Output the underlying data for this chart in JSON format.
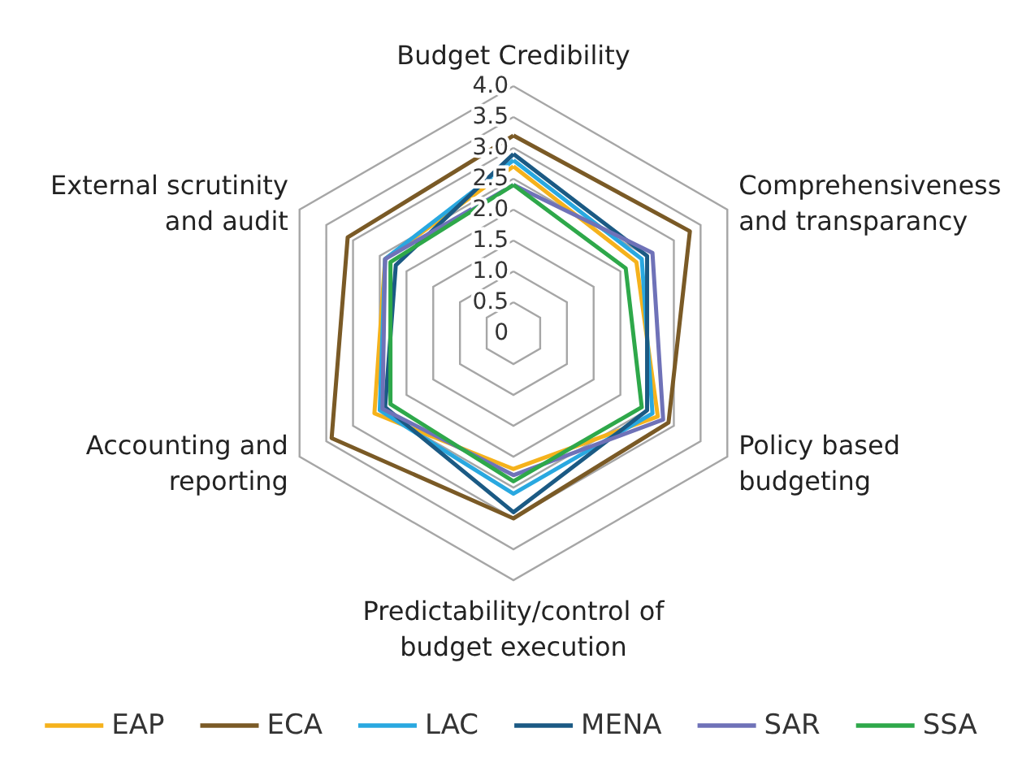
{
  "chart_data": {
    "type": "radar",
    "categories": [
      "Budget Credibility",
      "Comprehensiveness\nand transparancy",
      "Policy based\nbudgeting",
      "Predictability/control of\nbudget execution",
      "Accounting and\nreporting",
      "External scrutinity\nand audit"
    ],
    "series": [
      {
        "name": "EAP",
        "color": "#f5b21c",
        "values": [
          2.7,
          2.3,
          2.7,
          2.2,
          2.6,
          2.4
        ]
      },
      {
        "name": "ECA",
        "color": "#7a5a26",
        "values": [
          3.2,
          3.3,
          2.9,
          3.0,
          3.4,
          3.1
        ]
      },
      {
        "name": "LAC",
        "color": "#29a8e0",
        "values": [
          2.8,
          2.4,
          2.6,
          2.6,
          2.5,
          2.4
        ]
      },
      {
        "name": "MENA",
        "color": "#1b5a84",
        "values": [
          2.9,
          2.5,
          2.5,
          2.9,
          2.4,
          2.2
        ]
      },
      {
        "name": "SAR",
        "color": "#6f72b8",
        "values": [
          2.4,
          2.6,
          2.8,
          2.3,
          2.45,
          2.4
        ]
      },
      {
        "name": "SSA",
        "color": "#2ea84a",
        "values": [
          2.4,
          2.1,
          2.4,
          2.4,
          2.3,
          2.3
        ]
      }
    ],
    "ylim": [
      0,
      4
    ],
    "yticks": [
      0,
      0.5,
      {
        "value": 1,
        "label": "1.0"
      },
      1.5,
      {
        "value": 2,
        "label": "2.0"
      },
      2.5,
      {
        "value": 3,
        "label": "3.0"
      },
      3.5,
      {
        "value": 4,
        "label": "4.0"
      }
    ],
    "grid": true,
    "legend": "bottom",
    "marker": "none",
    "line_style": "solid"
  }
}
